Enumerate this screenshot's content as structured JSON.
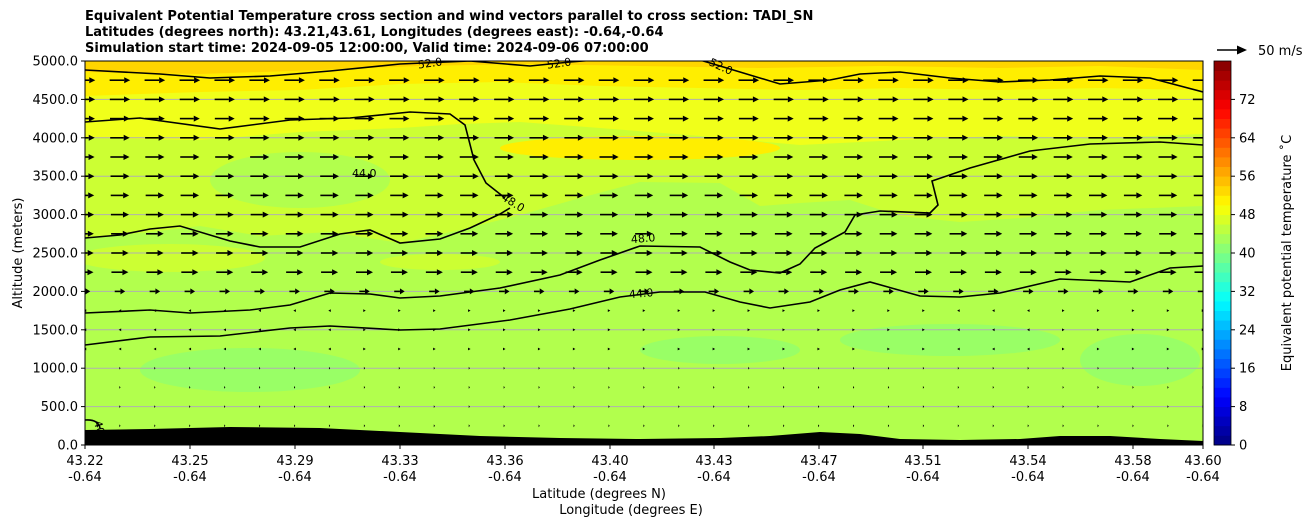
{
  "chart_data": {
    "type": "heatmap",
    "title_lines": [
      "Equivalent Potential Temperature cross section and wind vectors parallel to cross section: TADI_SN",
      "Latitudes (degrees north): 43.21,43.61, Longitudes (degrees east): -0.64,-0.64",
      "Simulation start time: 2024-09-05 12:00:00, Valid time: 2024-09-06 07:00:00"
    ],
    "ylabel": "Altitude (meters)",
    "xlabel_line1": "Latitude (degrees N)",
    "xlabel_line2": "Longitude (degrees E)",
    "ylim": [
      0,
      5000
    ],
    "yticks": [
      "0.0",
      "500.0",
      "1000.0",
      "1500.0",
      "2000.0",
      "2500.0",
      "3000.0",
      "3500.0",
      "4000.0",
      "4500.0",
      "5000.0"
    ],
    "xticks_lat": [
      "43.22",
      "43.25",
      "43.29",
      "43.33",
      "43.36",
      "43.40",
      "43.43",
      "43.47",
      "43.51",
      "43.54",
      "43.58",
      "43.60"
    ],
    "xticks_lon": [
      "-0.64",
      "-0.64",
      "-0.64",
      "-0.64",
      "-0.64",
      "-0.64",
      "-0.64",
      "-0.64",
      "-0.64",
      "-0.64",
      "-0.64",
      "-0.64"
    ],
    "grid": "horizontal",
    "colorbar": {
      "label": "Equivalent potential temperature $^\\circ$C",
      "label_display": "Equivalent potential temperature ˚C",
      "ticks": [
        "0",
        "8",
        "16",
        "24",
        "32",
        "40",
        "48",
        "56",
        "64",
        "72"
      ],
      "range": [
        0,
        80
      ]
    },
    "wind_key_label": "50 m/s",
    "contour_labels": [
      "44.0",
      "48.0",
      "48.0",
      "44.0",
      "52.0",
      "52.0",
      "52.0",
      "40"
    ],
    "terrain_color": "#000000",
    "contour_color": "#000000"
  }
}
